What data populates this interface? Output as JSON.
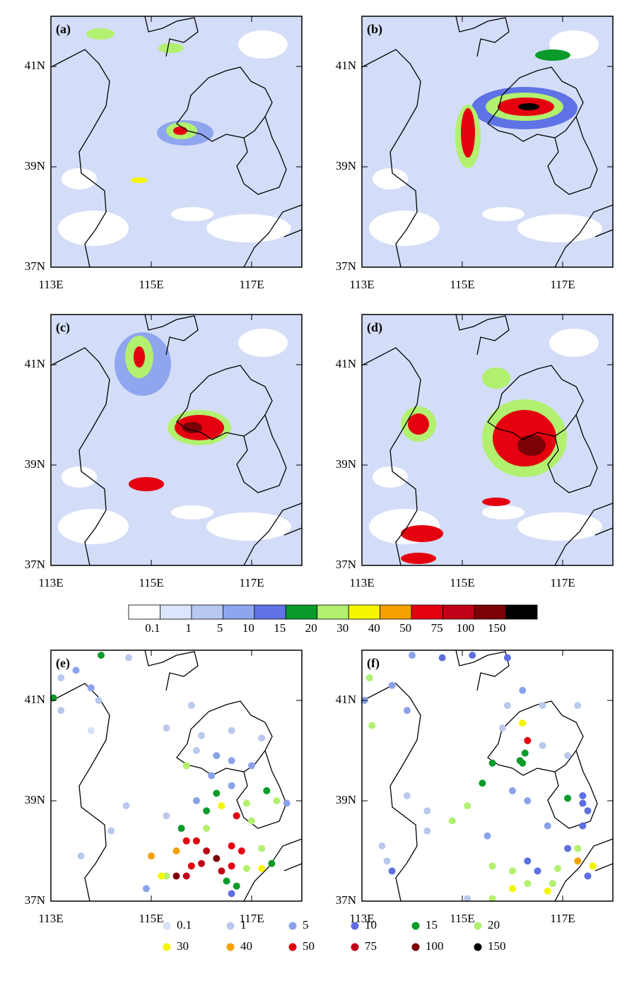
{
  "panels": [
    {
      "label": "(a)"
    },
    {
      "label": "(b)"
    },
    {
      "label": "(c)"
    },
    {
      "label": "(d)"
    },
    {
      "label": "(e)"
    },
    {
      "label": "(f)"
    }
  ],
  "xlim": [
    113,
    118
  ],
  "ylim": [
    37,
    42
  ],
  "xticks": [
    {
      "value": 113,
      "label": "113E"
    },
    {
      "value": 115,
      "label": "115E"
    },
    {
      "value": 117,
      "label": "117E"
    }
  ],
  "yticks": [
    {
      "value": 37,
      "label": "37N"
    },
    {
      "value": 39,
      "label": "39N"
    },
    {
      "value": 41,
      "label": "41N"
    }
  ],
  "colorbar": {
    "labels": [
      0.1,
      1,
      5,
      10,
      15,
      20,
      30,
      40,
      50,
      75,
      100,
      150
    ],
    "colors": [
      "#ffffff",
      "#dbe5fb",
      "#b9c8f1",
      "#8fa5ee",
      "#5f72e6",
      "#0a9b2a",
      "#b2f06f",
      "#f5f500",
      "#f7a000",
      "#e5000f",
      "#c00016",
      "#7b0008",
      "#000000"
    ]
  },
  "legend": {
    "values": [
      0.1,
      1,
      5,
      10,
      15,
      20,
      30,
      40,
      50,
      75,
      100,
      150
    ],
    "colors": [
      "#d6e0f7",
      "#b9c9ee",
      "#8aa2ea",
      "#5e6fe0",
      "#0a9b2a",
      "#b2f06f",
      "#f5f500",
      "#f7a000",
      "#e5000f",
      "#c00016",
      "#7b0008",
      "#000000"
    ]
  },
  "stations": [
    {
      "x": [
        114.0,
        113.05,
        113.2,
        113.5,
        114.55,
        113.8,
        113.95,
        113.2,
        113.8,
        115.8,
        115.3,
        116.0,
        116.6,
        117.2,
        115.9,
        116.3,
        116.6,
        115.7,
        117.0,
        116.2,
        116.6,
        117.3,
        117.5,
        117.7,
        116.9,
        116.3,
        115.9,
        116.1,
        116.4,
        116.7,
        117.0,
        115.3,
        114.5,
        114.2,
        115.7,
        115.6,
        116.1,
        115.9,
        116.1,
        116.6,
        116.8,
        117.2,
        115.5,
        115.0,
        115.8,
        116.0,
        116.3,
        116.6,
        116.4,
        115.7,
        115.5,
        115.3,
        115.2,
        114.9,
        116.5,
        116.7,
        116.6,
        117.4,
        117.2,
        116.9,
        113.6
      ],
      "y": [
        41.9,
        41.05,
        41.45,
        41.6,
        41.85,
        41.25,
        41.0,
        40.8,
        40.4,
        40.9,
        40.45,
        40.3,
        40.4,
        40.25,
        40.0,
        39.9,
        39.8,
        39.7,
        39.7,
        39.5,
        39.3,
        39.2,
        39.0,
        38.95,
        38.95,
        39.15,
        39.0,
        38.8,
        38.9,
        38.7,
        38.6,
        38.7,
        38.9,
        38.4,
        38.2,
        38.45,
        38.45,
        38.2,
        38.0,
        38.1,
        38.0,
        38.05,
        38.0,
        37.9,
        37.7,
        37.75,
        37.85,
        37.7,
        37.6,
        37.5,
        37.5,
        37.5,
        37.5,
        37.25,
        37.4,
        37.3,
        37.15,
        37.75,
        37.65,
        37.65,
        37.9
      ],
      "values": [
        15,
        15,
        1,
        5,
        1,
        5,
        1,
        1,
        0.1,
        1,
        1,
        1,
        1,
        1,
        1,
        5,
        5,
        20,
        5,
        5,
        5,
        15,
        20,
        5,
        20,
        15,
        5,
        15,
        30,
        50,
        20,
        1,
        1,
        1,
        50,
        15,
        20,
        50,
        75,
        50,
        50,
        20,
        40,
        40,
        50,
        75,
        100,
        50,
        75,
        75,
        100,
        20,
        30,
        5,
        15,
        15,
        10,
        15,
        30,
        20,
        1
      ]
    },
    {
      "x": [
        114.0,
        114.6,
        115.2,
        115.9,
        113.15,
        113.6,
        113.05,
        113.9,
        113.2,
        116.2,
        115.9,
        116.6,
        117.3,
        115.8,
        116.2,
        116.3,
        116.25,
        116.15,
        116.2,
        115.6,
        115.4,
        116.6,
        117.1,
        116.0,
        116.3,
        117.1,
        117.4,
        117.4,
        117.5,
        113.9,
        114.3,
        115.1,
        114.8,
        114.3,
        115.5,
        116.7,
        117.4,
        117.1,
        117.3,
        116.3,
        116.5,
        116.9,
        117.3,
        117.6,
        117.5,
        116.0,
        115.6,
        116.3,
        116.0,
        116.7,
        116.8,
        115.6,
        115.1,
        113.6,
        113.5,
        113.4
      ],
      "y": [
        41.9,
        41.85,
        41.9,
        41.85,
        41.45,
        41.3,
        41.0,
        40.8,
        40.5,
        41.2,
        40.9,
        40.9,
        40.9,
        40.45,
        40.55,
        40.2,
        39.95,
        39.8,
        39.75,
        39.75,
        39.35,
        40.1,
        39.9,
        39.2,
        39.0,
        39.05,
        39.1,
        38.95,
        38.8,
        39.1,
        38.8,
        38.9,
        38.6,
        38.4,
        38.3,
        38.5,
        38.5,
        38.05,
        38.05,
        37.8,
        37.6,
        37.65,
        37.8,
        37.7,
        37.5,
        37.6,
        37.7,
        37.35,
        37.25,
        37.2,
        37.35,
        37.05,
        37.05,
        37.6,
        37.8,
        38.1
      ],
      "values": [
        5,
        10,
        10,
        10,
        20,
        5,
        5,
        5,
        20,
        5,
        1,
        1,
        1,
        1,
        30,
        50,
        15,
        15,
        15,
        15,
        15,
        1,
        1,
        5,
        5,
        15,
        10,
        10,
        10,
        1,
        1,
        20,
        20,
        1,
        5,
        5,
        10,
        10,
        20,
        10,
        10,
        20,
        40,
        30,
        10,
        20,
        20,
        20,
        30,
        30,
        20,
        20,
        1,
        10,
        1,
        1
      ]
    }
  ]
}
